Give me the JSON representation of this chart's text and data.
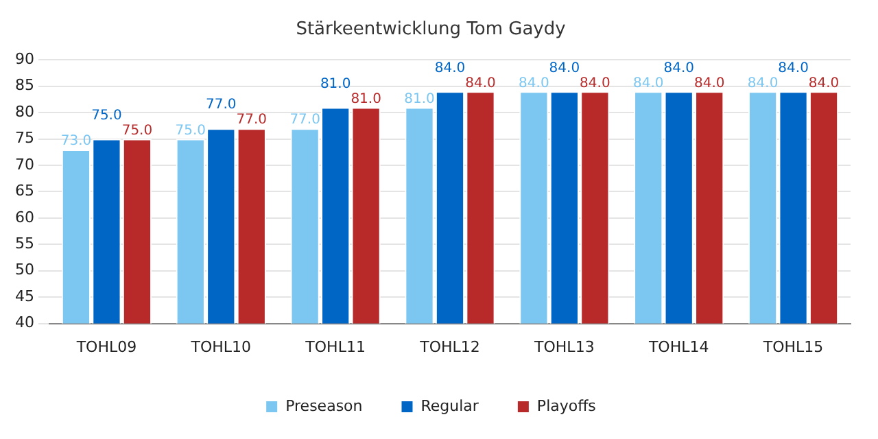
{
  "chart_data": {
    "type": "bar",
    "title": "Stärkeentwicklung Tom Gaydy",
    "categories": [
      "TOHL09",
      "TOHL10",
      "TOHL11",
      "TOHL12",
      "TOHL13",
      "TOHL14",
      "TOHL15"
    ],
    "series": [
      {
        "name": "Preseason",
        "color": "#7cc7f2",
        "values": [
          73,
          75,
          77,
          81,
          84,
          84,
          84
        ],
        "value_labels": [
          "73.0",
          "75.0",
          "77.0",
          "81.0",
          "84.0",
          "84.0",
          "84.0"
        ]
      },
      {
        "name": "Regular",
        "color": "#0066c6",
        "values": [
          75,
          77,
          81,
          84,
          84,
          84,
          84
        ],
        "value_labels": [
          "75.0",
          "77.0",
          "81.0",
          "84.0",
          "84.0",
          "84.0",
          "84.0"
        ]
      },
      {
        "name": "Playoffs",
        "color": "#b82a2a",
        "values": [
          75,
          77,
          81,
          84,
          84,
          84,
          84
        ],
        "value_labels": [
          "75.0",
          "77.0",
          "81.0",
          "84.0",
          "84.0",
          "84.0",
          "84.0"
        ]
      }
    ],
    "ylim": [
      40,
      90
    ],
    "yticks": [
      40,
      45,
      50,
      55,
      60,
      65,
      70,
      75,
      80,
      85,
      90
    ],
    "grid": "y",
    "legend": "bottom"
  }
}
